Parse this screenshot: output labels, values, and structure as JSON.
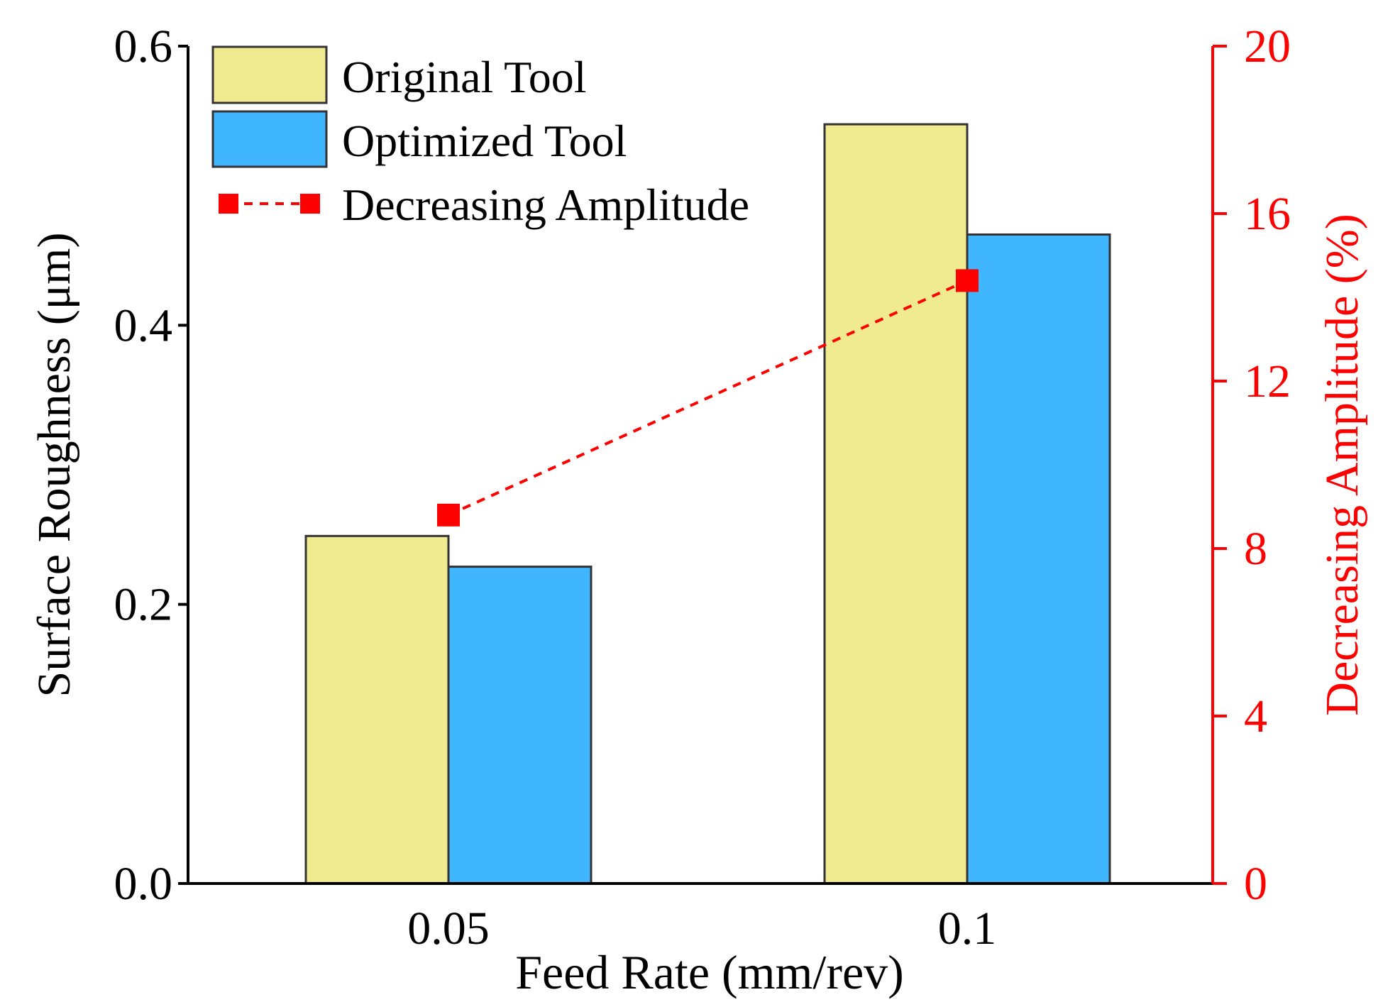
{
  "chart_data": {
    "type": "bar",
    "title": "",
    "xlabel": "Feed Rate (mm/rev)",
    "ylabel": "Surface Roughness (μm)",
    "y2label": "Decreasing Amplitude (%)",
    "categories": [
      "0.05",
      "0.1"
    ],
    "ylim": [
      0,
      0.6
    ],
    "yticks": [
      "0.0",
      "0.2",
      "0.4",
      "0.6"
    ],
    "y2lim": [
      0,
      20
    ],
    "y2ticks": [
      "0",
      "4",
      "8",
      "12",
      "16",
      "20"
    ],
    "grid": false,
    "legend_position": "top-left",
    "series": [
      {
        "name": "Original Tool",
        "kind": "bar",
        "color": "#F0EB91",
        "values": [
          0.249,
          0.544
        ]
      },
      {
        "name": "Optimized Tool",
        "kind": "bar",
        "color": "#40B6FF",
        "values": [
          0.227,
          0.465
        ]
      },
      {
        "name": "Decreasing Amplitude",
        "kind": "line",
        "axis": "right",
        "color": "#FF0000",
        "values": [
          8.8,
          14.4
        ]
      }
    ]
  }
}
